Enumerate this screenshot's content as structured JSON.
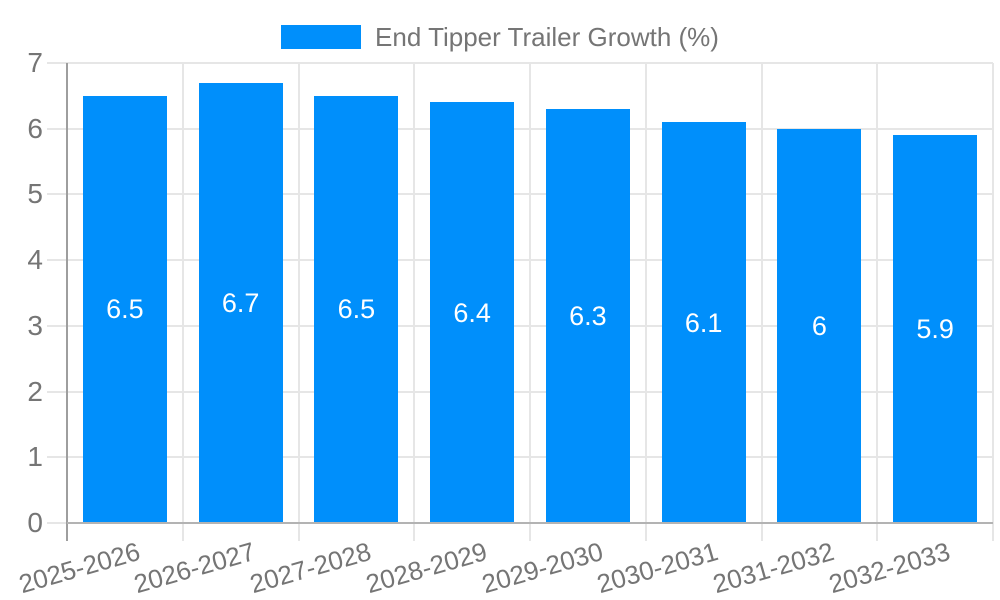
{
  "legend": {
    "label": "End Tipper Trailer Growth (%)"
  },
  "colors": {
    "bar": "#008FFB",
    "bar_label": "#ffffff",
    "axis_text": "#757575",
    "grid": "#e6e6e6",
    "tick": "#e6e6e6",
    "y_axis_line": "#9e9e9e",
    "x_axis_line": "#b3b3b3",
    "background": "#ffffff"
  },
  "chart_data": {
    "type": "bar",
    "title": "End Tipper Trailer Growth (%)",
    "categories": [
      "2025-2026",
      "2026-2027",
      "2027-2028",
      "2028-2029",
      "2029-2030",
      "2030-2031",
      "2031-2032",
      "2032-2033"
    ],
    "values": [
      6.5,
      6.7,
      6.5,
      6.4,
      6.3,
      6.1,
      6,
      5.9
    ],
    "value_labels": [
      "6.5",
      "6.7",
      "6.5",
      "6.4",
      "6.3",
      "6.1",
      "6",
      "5.9"
    ],
    "series_name": "End Tipper Trailer Growth (%)",
    "xlabel": "",
    "ylabel": "",
    "ylim": [
      0,
      7
    ],
    "y_ticks": [
      0,
      1,
      2,
      3,
      4,
      5,
      6,
      7
    ],
    "grid": true,
    "x_grid": true,
    "bar_labels_inside": true,
    "legend_position": "top-center",
    "x_label_rotation_deg": -16
  }
}
